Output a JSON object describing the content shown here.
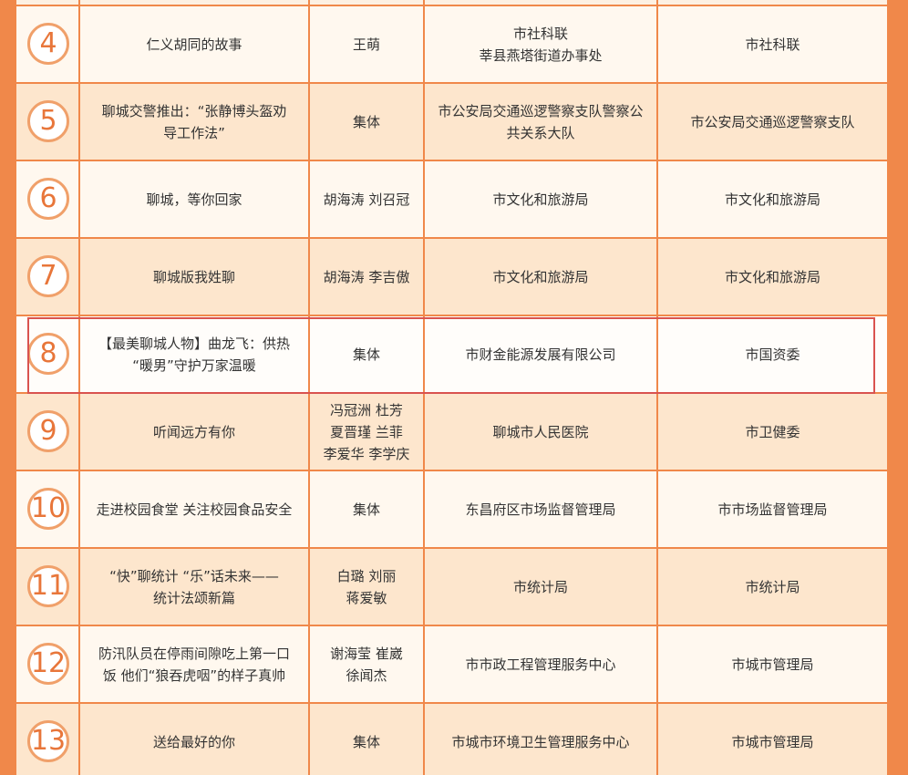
{
  "table": {
    "rows": [
      {
        "number": "4",
        "title": [
          "仁义胡同的故事"
        ],
        "author": [
          "王萌"
        ],
        "unit": [
          "市社科联",
          "莘县燕塔街道办事处"
        ],
        "recommender": [
          "市社科联"
        ]
      },
      {
        "number": "5",
        "title": [
          "聊城交警推出：“张静博头盔劝",
          "导工作法”"
        ],
        "author": [
          "集体"
        ],
        "unit": [
          "市公安局交通巡逻警察支队警察公",
          "共关系大队"
        ],
        "recommender": [
          "市公安局交通巡逻警察支队"
        ]
      },
      {
        "number": "6",
        "title": [
          "聊城，等你回家"
        ],
        "author": [
          "胡海涛 刘召冠"
        ],
        "unit": [
          "市文化和旅游局"
        ],
        "recommender": [
          "市文化和旅游局"
        ]
      },
      {
        "number": "7",
        "title": [
          "聊城版我姓聊"
        ],
        "author": [
          "胡海涛 李吉傲"
        ],
        "unit": [
          "市文化和旅游局"
        ],
        "recommender": [
          "市文化和旅游局"
        ]
      },
      {
        "number": "8",
        "title": [
          "【最美聊城人物】曲龙飞：供热",
          "“暖男”守护万家温暖"
        ],
        "author": [
          "集体"
        ],
        "unit": [
          "市财金能源发展有限公司"
        ],
        "recommender": [
          "市国资委"
        ]
      },
      {
        "number": "9",
        "title": [
          "听闻远方有你"
        ],
        "author": [
          "冯冠洲 杜芳",
          "夏晋瑾 兰菲",
          "李爱华 李学庆"
        ],
        "unit": [
          "聊城市人民医院"
        ],
        "recommender": [
          "市卫健委"
        ]
      },
      {
        "number": "10",
        "title": [
          "走进校园食堂 关注校园食品安全"
        ],
        "author": [
          "集体"
        ],
        "unit": [
          "东昌府区市场监督管理局"
        ],
        "recommender": [
          "市市场监督管理局"
        ]
      },
      {
        "number": "11",
        "title": [
          "“快”聊统计 “乐”话未来——",
          "统计法颂新篇"
        ],
        "author": [
          "白璐 刘丽",
          "蒋爱敏"
        ],
        "unit": [
          "市统计局"
        ],
        "recommender": [
          "市统计局"
        ]
      },
      {
        "number": "12",
        "title": [
          "防汛队员在停雨间隙吃上第一口",
          "饭 他们“狼吞虎咽”的样子真帅"
        ],
        "author": [
          "谢海莹 崔崴",
          "徐闻杰"
        ],
        "unit": [
          "市市政工程管理服务中心"
        ],
        "recommender": [
          "市城市管理局"
        ]
      },
      {
        "number": "13",
        "title": [
          "送给最好的你"
        ],
        "author": [
          "集体"
        ],
        "unit": [
          "市城市环境卫生管理服务中心"
        ],
        "recommender": [
          "市城市管理局"
        ]
      }
    ]
  }
}
